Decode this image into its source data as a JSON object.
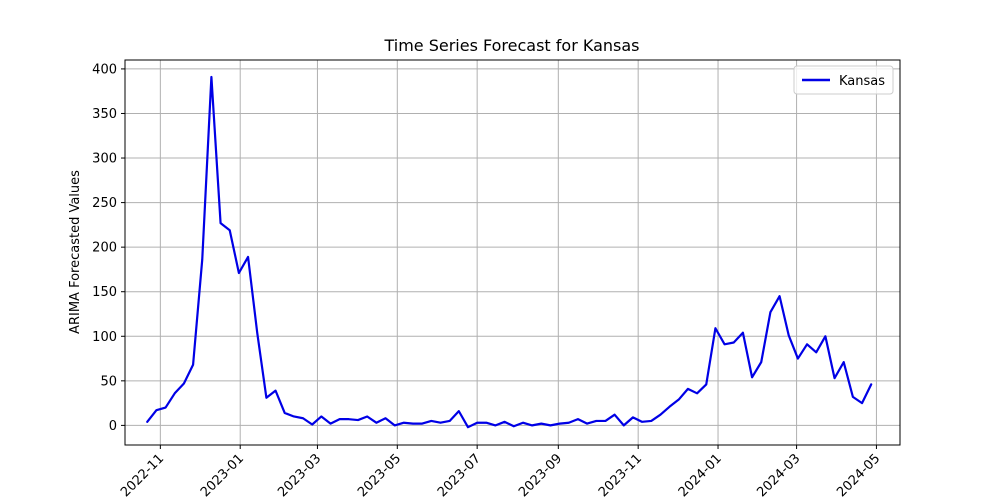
{
  "chart_data": {
    "type": "line",
    "title": "Time Series Forecast for Kansas",
    "xlabel": "",
    "ylabel": "ARIMA Forecasted Values",
    "xlim": [
      "2022-10-05",
      "2024-05-19"
    ],
    "ylim": [
      -22,
      410
    ],
    "yticks": [
      0,
      50,
      100,
      150,
      200,
      250,
      300,
      350,
      400
    ],
    "xticks": [
      "2022-11-01",
      "2023-01-01",
      "2023-03-01",
      "2023-05-01",
      "2023-07-01",
      "2023-09-01",
      "2023-11-01",
      "2024-01-01",
      "2024-03-01",
      "2024-05-01"
    ],
    "xtick_labels": [
      "2022-11",
      "2023-01",
      "2023-03",
      "2023-05",
      "2023-07",
      "2023-09",
      "2023-11",
      "2024-01",
      "2024-03",
      "2024-05"
    ],
    "grid": true,
    "legend_position": "top-right",
    "series": [
      {
        "name": "Kansas",
        "color": "#0000e6",
        "x": [
          "2022-10-22",
          "2022-10-29",
          "2022-11-05",
          "2022-11-12",
          "2022-11-19",
          "2022-11-26",
          "2022-12-03",
          "2022-12-10",
          "2022-12-17",
          "2022-12-24",
          "2022-12-31",
          "2023-01-07",
          "2023-01-14",
          "2023-01-21",
          "2023-01-28",
          "2023-02-04",
          "2023-02-11",
          "2023-02-18",
          "2023-02-25",
          "2023-03-04",
          "2023-03-11",
          "2023-03-18",
          "2023-03-25",
          "2023-04-01",
          "2023-04-08",
          "2023-04-15",
          "2023-04-22",
          "2023-04-29",
          "2023-05-06",
          "2023-05-13",
          "2023-05-20",
          "2023-05-27",
          "2023-06-03",
          "2023-06-10",
          "2023-06-17",
          "2023-06-24",
          "2023-07-01",
          "2023-07-08",
          "2023-07-15",
          "2023-07-22",
          "2023-07-29",
          "2023-08-05",
          "2023-08-12",
          "2023-08-19",
          "2023-08-26",
          "2023-09-02",
          "2023-09-09",
          "2023-09-16",
          "2023-09-23",
          "2023-09-30",
          "2023-10-07",
          "2023-10-14",
          "2023-10-21",
          "2023-10-28",
          "2023-11-04",
          "2023-11-11",
          "2023-11-18",
          "2023-11-25",
          "2023-12-02",
          "2023-12-09",
          "2023-12-16",
          "2023-12-23",
          "2023-12-30",
          "2024-01-06",
          "2024-01-13",
          "2024-01-20",
          "2024-01-27",
          "2024-02-03",
          "2024-02-10",
          "2024-02-17",
          "2024-02-24",
          "2024-03-02",
          "2024-03-09",
          "2024-03-16",
          "2024-03-23",
          "2024-03-30",
          "2024-04-06",
          "2024-04-13",
          "2024-04-20",
          "2024-04-27"
        ],
        "values": [
          4,
          17,
          20,
          36,
          47,
          68,
          186,
          391,
          227,
          219,
          171,
          189,
          104,
          31,
          39,
          14,
          10,
          8,
          1,
          10,
          2,
          7,
          7,
          6,
          10,
          3,
          8,
          0,
          3,
          2,
          2,
          5,
          3,
          5,
          16,
          -2,
          3,
          3,
          0,
          4,
          -1,
          3,
          0,
          2,
          0,
          2,
          3,
          7,
          2,
          5,
          5,
          12,
          0,
          9,
          4,
          5,
          12,
          21,
          29,
          41,
          36,
          46,
          109,
          91,
          93,
          104,
          54,
          71,
          127,
          145,
          101,
          75,
          91,
          82,
          100,
          53,
          71,
          32,
          25,
          46
        ]
      }
    ]
  }
}
